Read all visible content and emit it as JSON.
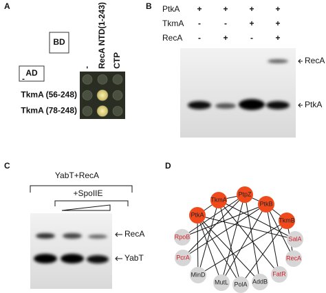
{
  "panel_a": {
    "label": "A",
    "bd": "BD",
    "ad": "AD",
    "columns": [
      "-",
      "RecA NTD(1-243)",
      "CTP"
    ],
    "rows": [
      "-",
      "TkmA (56-248)",
      "TkmA (78-248)"
    ]
  },
  "panel_b": {
    "label": "B",
    "rows": [
      {
        "name": "PtkA",
        "signs": [
          "+",
          "+",
          "+",
          "+"
        ]
      },
      {
        "name": "TkmA",
        "signs": [
          "-",
          "-",
          "+",
          "+"
        ]
      },
      {
        "name": "RecA",
        "signs": [
          "-",
          "+",
          "-",
          "+"
        ]
      }
    ],
    "bands": [
      "RecA",
      "PtkA"
    ]
  },
  "panel_c": {
    "label": "C",
    "condition": "YabT+RecA",
    "treatment": "+SpoIIE",
    "bands": [
      "RecA",
      "YabT"
    ]
  },
  "panel_d": {
    "label": "D",
    "nodes": [
      {
        "label": "TkmA",
        "fill": "#f04a1c",
        "text_color": "#222222"
      },
      {
        "label": "PtpZ",
        "fill": "#f04a1c",
        "text_color": "#222222"
      },
      {
        "label": "PtkB",
        "fill": "#f04a1c",
        "text_color": "#222222"
      },
      {
        "label": "PtkA",
        "fill": "#f04a1c",
        "text_color": "#222222"
      },
      {
        "label": "TkmB",
        "fill": "#f04a1c",
        "text_color": "#222222"
      },
      {
        "label": "RpoB",
        "fill": "#d6d6d6",
        "text_color": "#d0202a"
      },
      {
        "label": "SalA",
        "fill": "#d6d6d6",
        "text_color": "#d0202a"
      },
      {
        "label": "PcrA",
        "fill": "#d6d6d6",
        "text_color": "#d0202a"
      },
      {
        "label": "RecA",
        "fill": "#d6d6d6",
        "text_color": "#d0202a"
      },
      {
        "label": "MinD",
        "fill": "#d6d6d6",
        "text_color": "#222222"
      },
      {
        "label": "FatR",
        "fill": "#d6d6d6",
        "text_color": "#d0202a"
      },
      {
        "label": "MutL",
        "fill": "#d6d6d6",
        "text_color": "#222222"
      },
      {
        "label": "PolA",
        "fill": "#d6d6d6",
        "text_color": "#222222"
      },
      {
        "label": "AddB",
        "fill": "#d6d6d6",
        "text_color": "#222222"
      }
    ]
  }
}
